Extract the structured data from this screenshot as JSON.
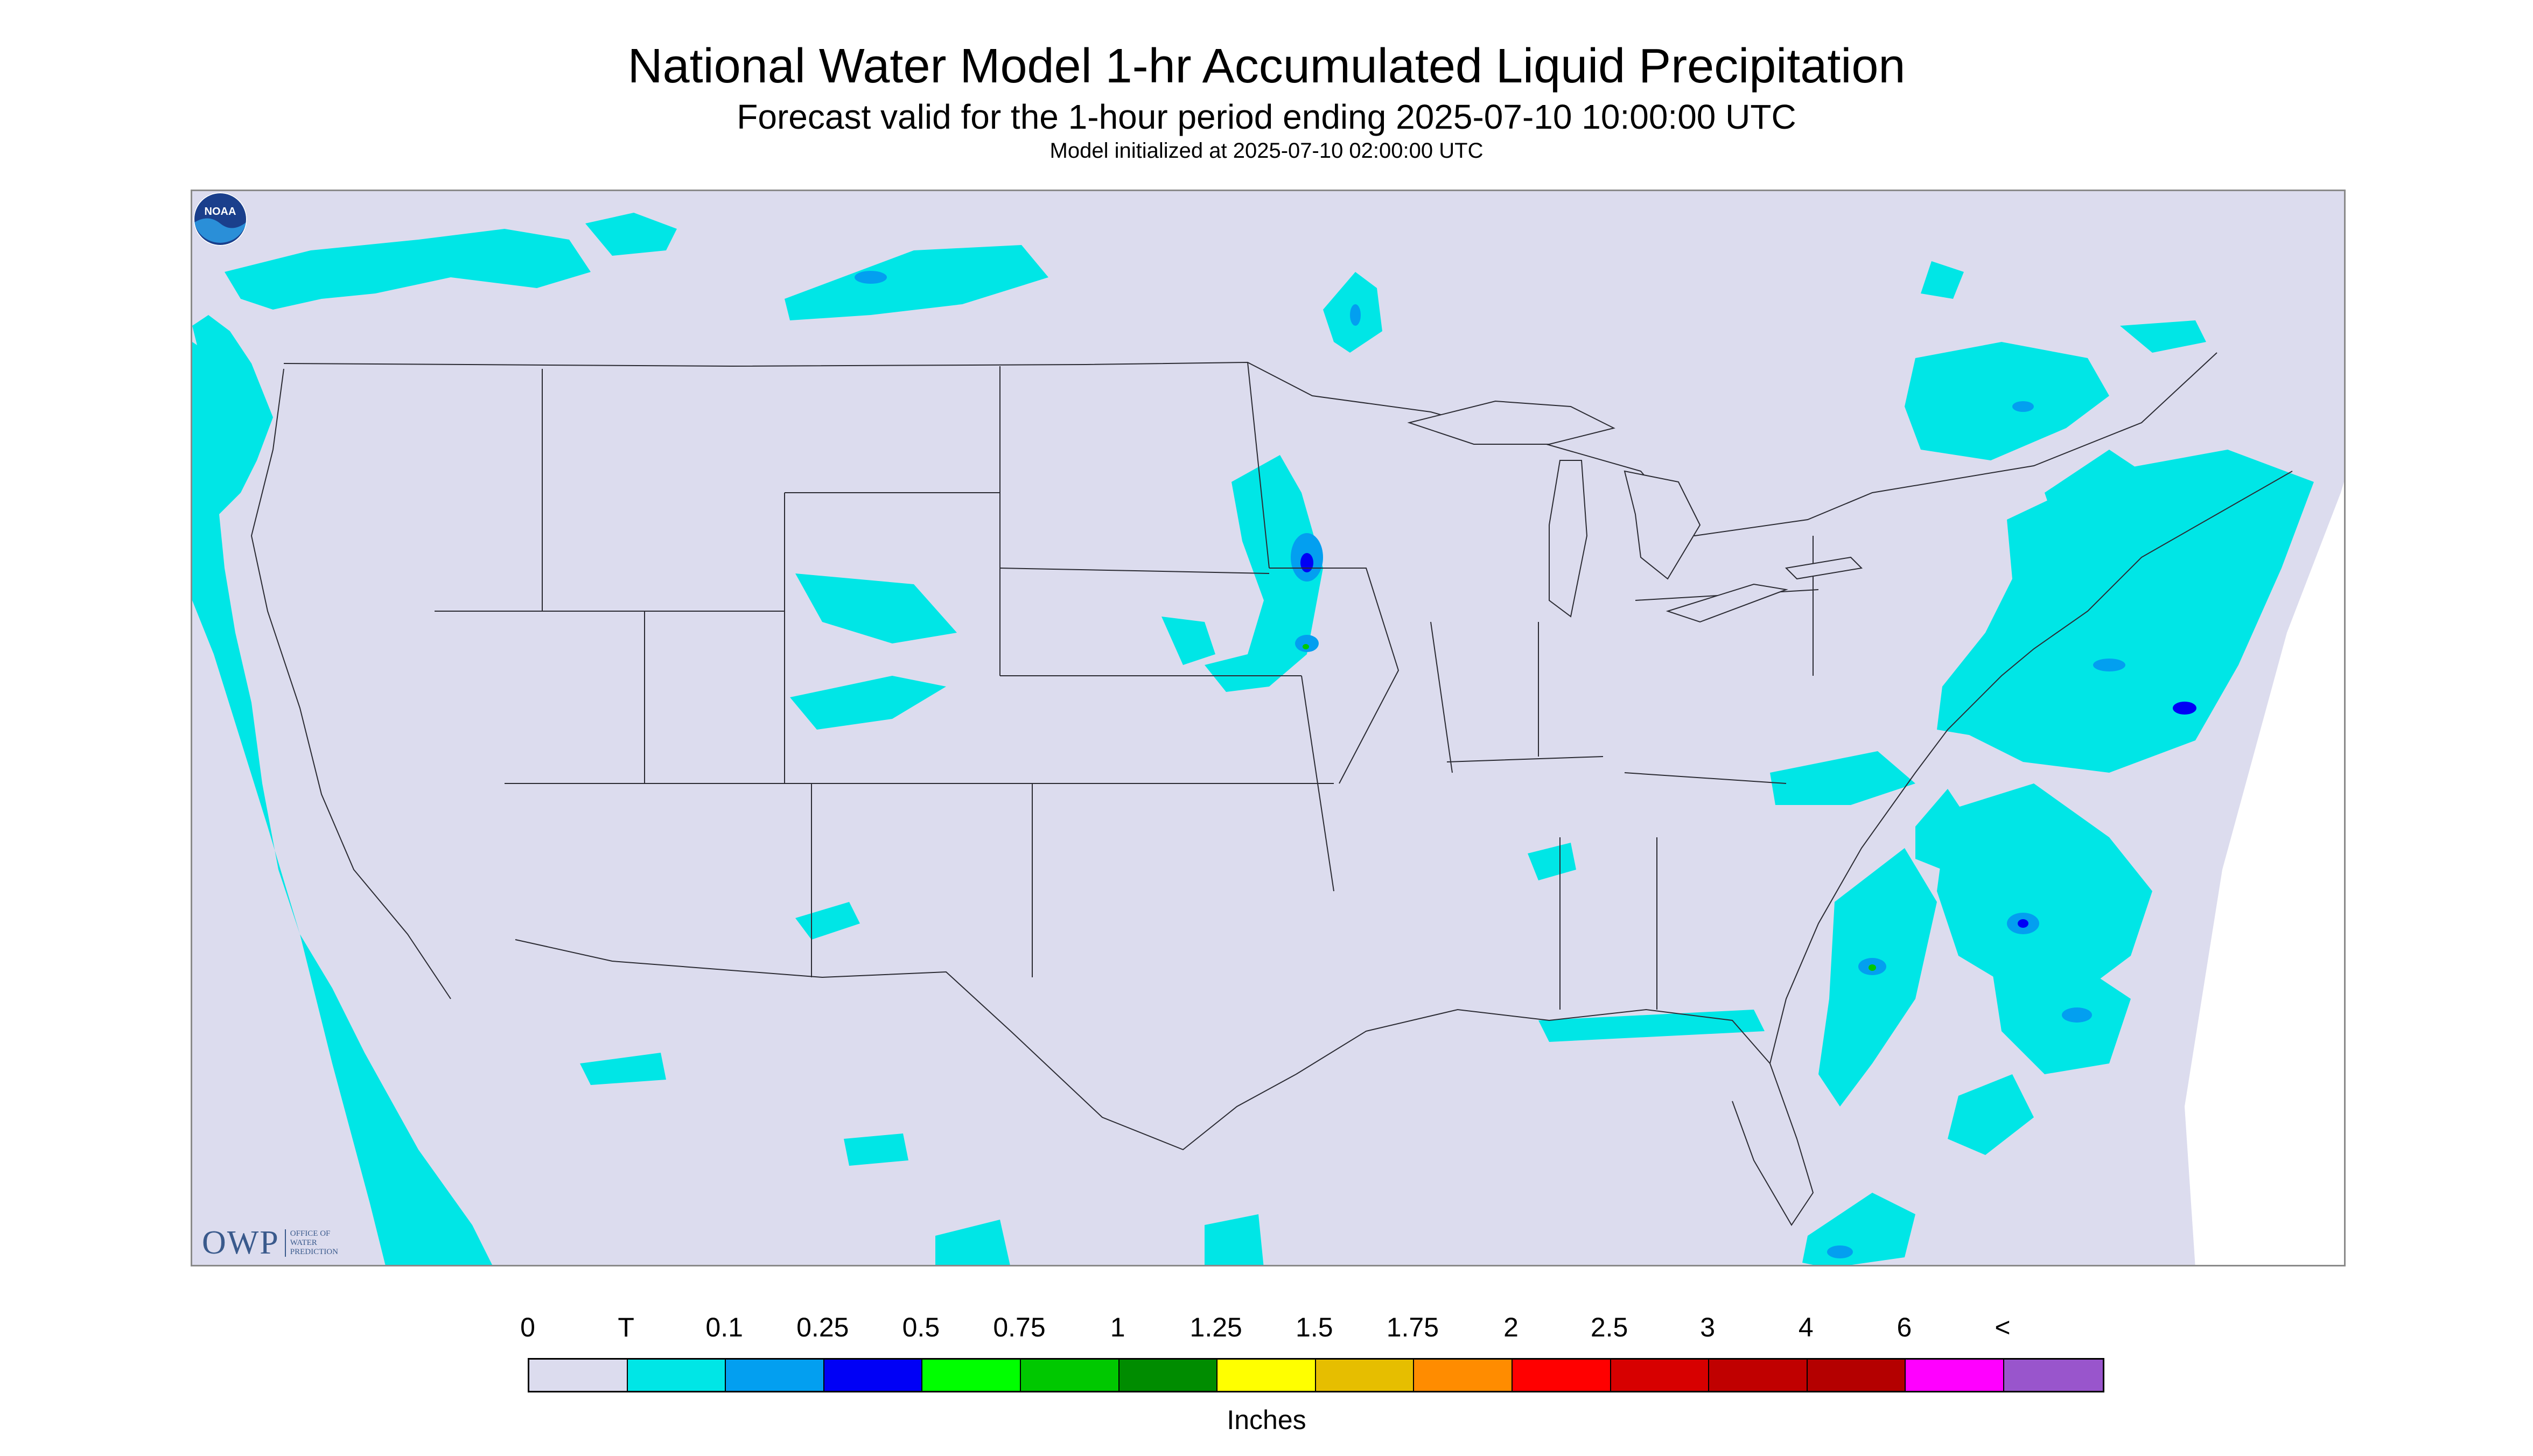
{
  "header": {
    "title": "National Water Model 1-hr Accumulated Liquid Precipitation",
    "subtitle": "Forecast valid for the 1-hour period ending 2025-07-10 10:00:00 UTC",
    "init": "Model initialized at 2025-07-10 02:00:00 UTC"
  },
  "logos": {
    "owp_letters": "OWP",
    "owp_line1": "OFFICE OF",
    "owp_line2": "WATER",
    "owp_line3": "PREDICTION",
    "noaa_text": "NOAA"
  },
  "legend": {
    "labels": [
      "0",
      "T",
      "0.1",
      "0.25",
      "0.5",
      "0.75",
      "1",
      "1.25",
      "1.5",
      "1.75",
      "2",
      "2.5",
      "3",
      "4",
      "6",
      "<"
    ],
    "colors": [
      "#dcdcee",
      "#00e6e6",
      "#039ff0",
      "#0000f6",
      "#00ff00",
      "#00c800",
      "#008c00",
      "#ffff00",
      "#e6be00",
      "#ff8c00",
      "#ff0000",
      "#d70000",
      "#c00000",
      "#b40000",
      "#ff00ff",
      "#9955cc"
    ],
    "units": "Inches"
  },
  "colors": {
    "background": "#dcdcee",
    "trace": "#00e6e6",
    "light": "#039ff0",
    "medium": "#0000f6",
    "green": "#00c800"
  }
}
